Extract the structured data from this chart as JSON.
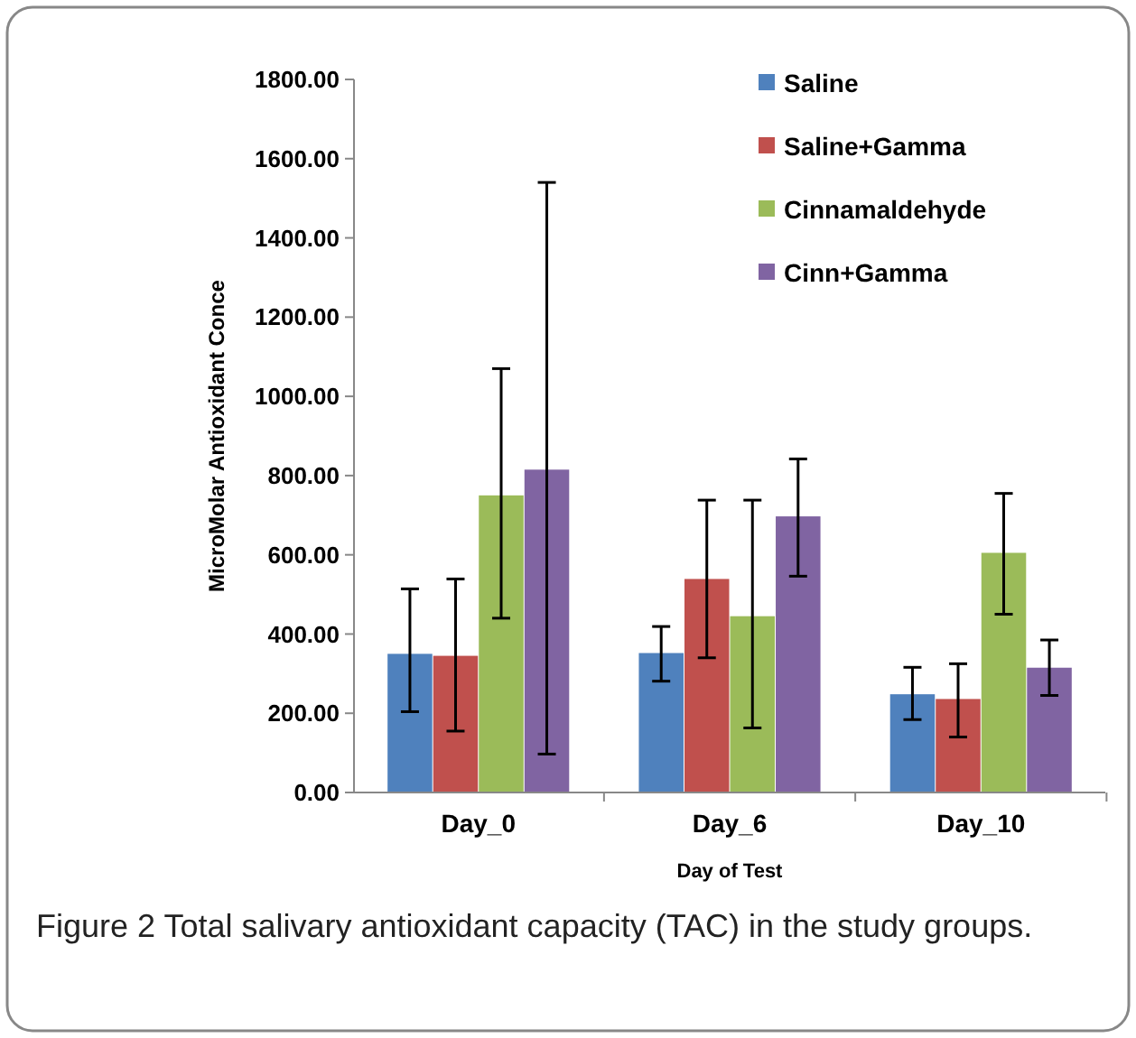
{
  "chart_data": {
    "type": "bar",
    "xlabel": "Day of Test",
    "ylabel": "MicroMolar Antioxidant Conce",
    "categories": [
      "Day_0",
      "Day_6",
      "Day_10"
    ],
    "series": [
      {
        "name": "Saline",
        "color": "#4f81bd",
        "values": [
          350,
          352,
          248
        ],
        "errors": [
          [
            204,
            514
          ],
          [
            281,
            419
          ],
          [
            184,
            316
          ]
        ]
      },
      {
        "name": "Saline+Gamma",
        "color": "#c0504d",
        "values": [
          345,
          539,
          236
        ],
        "errors": [
          [
            155,
            539
          ],
          [
            340,
            738
          ],
          [
            140,
            325
          ]
        ]
      },
      {
        "name": "Cinnamaldehyde",
        "color": "#9bbb59",
        "values": [
          750,
          445,
          605
        ],
        "errors": [
          [
            440,
            1070
          ],
          [
            163,
            738
          ],
          [
            450,
            755
          ]
        ]
      },
      {
        "name": "Cinn+Gamma",
        "color": "#8064a2",
        "values": [
          815,
          697,
          315
        ],
        "errors": [
          [
            97,
            1540
          ],
          [
            546,
            842
          ],
          [
            245,
            385
          ]
        ]
      }
    ],
    "ylim": [
      0,
      1800
    ],
    "yticks": [
      {
        "value": 0,
        "label": "0.00"
      },
      {
        "value": 200,
        "label": "200.00"
      },
      {
        "value": 400,
        "label": "400.00"
      },
      {
        "value": 600,
        "label": "600.00"
      },
      {
        "value": 800,
        "label": "800.00"
      },
      {
        "value": 1000,
        "label": "1000.00"
      },
      {
        "value": 1200,
        "label": "1200.00"
      },
      {
        "value": 1400,
        "label": "1400.00"
      },
      {
        "value": 1600,
        "label": "1600.00"
      },
      {
        "value": 1800,
        "label": "1800.00"
      }
    ],
    "legend": "top right",
    "annotations": [
      "Figure 2 Total salivary antioxidant capacity (TAC) in the study groups."
    ]
  }
}
